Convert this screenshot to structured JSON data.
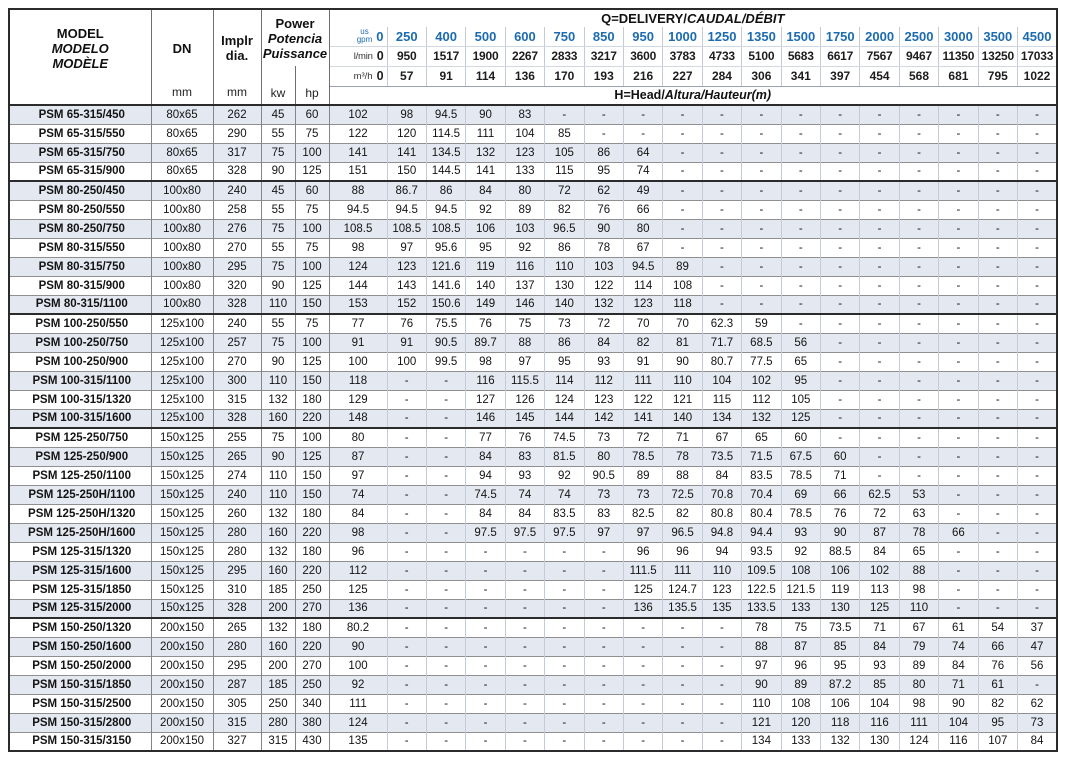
{
  "table": {
    "header": {
      "model_line1": "MODEL",
      "model_line2": "MODELO",
      "model_line3": "MODÈLE",
      "dn_label": "DN",
      "dn_unit": "mm",
      "implr_line1": "Implr",
      "implr_line2": "dia.",
      "implr_unit": "mm",
      "power_line1": "Power",
      "power_line2": "Potencia",
      "power_line3": "Puissance",
      "kw_label": "kw",
      "hp_label": "hp",
      "q_title_plain": "Q=DELIVERY/",
      "q_title_italic": "CAUDAL/DÉBIT",
      "h_title_plain": "H=Head/",
      "h_title_italic": "Altura/Hauteur",
      "h_title_unit": "(m)",
      "unit_gpm_top": "us",
      "unit_gpm_bottom": "gpm",
      "unit_lmin": "l/min",
      "unit_m3h": "m³/h"
    },
    "colors": {
      "accent_blue": "#1c6bb0",
      "stripe": "#e3e8f1",
      "border_dark": "#2b2b2b"
    }
  },
  "chart_data": {
    "type": "table",
    "flow_gpm": [
      0,
      250,
      400,
      500,
      600,
      750,
      850,
      950,
      1000,
      1250,
      1350,
      1500,
      1750,
      2000,
      2500,
      3000,
      3500,
      4500
    ],
    "flow_lmin": [
      0,
      950,
      1517,
      1900,
      2267,
      2833,
      3217,
      3600,
      3783,
      4733,
      5100,
      5683,
      6617,
      7567,
      9467,
      11350,
      13250,
      17033
    ],
    "flow_m3h": [
      0,
      57,
      91,
      114,
      136,
      170,
      193,
      216,
      227,
      284,
      306,
      341,
      397,
      454,
      568,
      681,
      795,
      1022
    ],
    "group_end_rows": [
      3,
      10,
      16,
      26,
      33
    ],
    "rows": [
      {
        "model": "PSM 65-315/450",
        "dn": "80x65",
        "dia": 262,
        "kw": 45,
        "hp": 60,
        "head": [
          102,
          98,
          94.5,
          90,
          83,
          "-",
          "-",
          "-",
          "-",
          "-",
          "-",
          "-",
          "-",
          "-",
          "-",
          "-",
          "-",
          "-"
        ]
      },
      {
        "model": "PSM 65-315/550",
        "dn": "80x65",
        "dia": 290,
        "kw": 55,
        "hp": 75,
        "head": [
          122,
          120,
          114.5,
          111,
          104,
          85,
          "-",
          "-",
          "-",
          "-",
          "-",
          "-",
          "-",
          "-",
          "-",
          "-",
          "-",
          "-"
        ]
      },
      {
        "model": "PSM 65-315/750",
        "dn": "80x65",
        "dia": 317,
        "kw": 75,
        "hp": 100,
        "head": [
          141,
          141,
          134.5,
          132,
          123,
          105,
          86,
          64,
          "-",
          "-",
          "-",
          "-",
          "-",
          "-",
          "-",
          "-",
          "-",
          "-"
        ]
      },
      {
        "model": "PSM 65-315/900",
        "dn": "80x65",
        "dia": 328,
        "kw": 90,
        "hp": 125,
        "head": [
          151,
          150,
          144.5,
          141,
          133,
          115,
          95,
          74,
          "-",
          "-",
          "-",
          "-",
          "-",
          "-",
          "-",
          "-",
          "-",
          "-"
        ]
      },
      {
        "model": "PSM 80-250/450",
        "dn": "100x80",
        "dia": 240,
        "kw": 45,
        "hp": 60,
        "head": [
          88,
          86.7,
          86,
          84,
          80,
          72,
          62,
          49,
          "-",
          "-",
          "-",
          "-",
          "-",
          "-",
          "-",
          "-",
          "-",
          "-"
        ]
      },
      {
        "model": "PSM 80-250/550",
        "dn": "100x80",
        "dia": 258,
        "kw": 55,
        "hp": 75,
        "head": [
          94.5,
          94.5,
          94.5,
          92,
          89,
          82,
          76,
          66,
          "-",
          "-",
          "-",
          "-",
          "-",
          "-",
          "-",
          "-",
          "-",
          "-"
        ]
      },
      {
        "model": "PSM 80-250/750",
        "dn": "100x80",
        "dia": 276,
        "kw": 75,
        "hp": 100,
        "head": [
          108.5,
          108.5,
          108.5,
          106,
          103,
          96.5,
          90,
          80,
          "-",
          "-",
          "-",
          "-",
          "-",
          "-",
          "-",
          "-",
          "-",
          "-"
        ]
      },
      {
        "model": "PSM 80-315/550",
        "dn": "100x80",
        "dia": 270,
        "kw": 55,
        "hp": 75,
        "head": [
          98,
          97,
          95.6,
          95,
          92,
          86,
          78,
          67,
          "-",
          "-",
          "-",
          "-",
          "-",
          "-",
          "-",
          "-",
          "-",
          "-"
        ]
      },
      {
        "model": "PSM 80-315/750",
        "dn": "100x80",
        "dia": 295,
        "kw": 75,
        "hp": 100,
        "head": [
          124,
          123,
          121.6,
          119,
          116,
          110,
          103,
          94.5,
          89,
          "-",
          "-",
          "-",
          "-",
          "-",
          "-",
          "-",
          "-",
          "-"
        ]
      },
      {
        "model": "PSM 80-315/900",
        "dn": "100x80",
        "dia": 320,
        "kw": 90,
        "hp": 125,
        "head": [
          144,
          143,
          141.6,
          140,
          137,
          130,
          122,
          114,
          108,
          "-",
          "-",
          "-",
          "-",
          "-",
          "-",
          "-",
          "-",
          "-"
        ]
      },
      {
        "model": "PSM 80-315/1100",
        "dn": "100x80",
        "dia": 328,
        "kw": 110,
        "hp": 150,
        "head": [
          153,
          152,
          150.6,
          149,
          146,
          140,
          132,
          123,
          118,
          "-",
          "-",
          "-",
          "-",
          "-",
          "-",
          "-",
          "-",
          "-"
        ]
      },
      {
        "model": "PSM 100-250/550",
        "dn": "125x100",
        "dia": 240,
        "kw": 55,
        "hp": 75,
        "head": [
          77,
          76,
          75.5,
          76,
          75,
          73,
          72,
          70,
          70,
          62.3,
          59,
          "-",
          "-",
          "-",
          "-",
          "-",
          "-",
          "-"
        ]
      },
      {
        "model": "PSM 100-250/750",
        "dn": "125x100",
        "dia": 257,
        "kw": 75,
        "hp": 100,
        "head": [
          91,
          91,
          90.5,
          89.7,
          88,
          86,
          84,
          82,
          81,
          71.7,
          68.5,
          56,
          "-",
          "-",
          "-",
          "-",
          "-",
          "-"
        ]
      },
      {
        "model": "PSM 100-250/900",
        "dn": "125x100",
        "dia": 270,
        "kw": 90,
        "hp": 125,
        "head": [
          100,
          100,
          99.5,
          98,
          97,
          95,
          93,
          91,
          90,
          80.7,
          77.5,
          65,
          "-",
          "-",
          "-",
          "-",
          "-",
          "-"
        ]
      },
      {
        "model": "PSM 100-315/1100",
        "dn": "125x100",
        "dia": 300,
        "kw": 110,
        "hp": 150,
        "head": [
          118,
          "-",
          "-",
          116,
          115.5,
          114,
          112,
          111,
          110,
          104,
          102,
          95,
          "-",
          "-",
          "-",
          "-",
          "-",
          "-"
        ]
      },
      {
        "model": "PSM 100-315/1320",
        "dn": "125x100",
        "dia": 315,
        "kw": 132,
        "hp": 180,
        "head": [
          129,
          "-",
          "-",
          127,
          126,
          124,
          123,
          122,
          121,
          115,
          112,
          105,
          "-",
          "-",
          "-",
          "-",
          "-",
          "-"
        ]
      },
      {
        "model": "PSM 100-315/1600",
        "dn": "125x100",
        "dia": 328,
        "kw": 160,
        "hp": 220,
        "head": [
          148,
          "-",
          "-",
          146,
          145,
          144,
          142,
          141,
          140,
          134,
          132,
          125,
          "-",
          "-",
          "-",
          "-",
          "-",
          "-"
        ]
      },
      {
        "model": "PSM 125-250/750",
        "dn": "150x125",
        "dia": 255,
        "kw": 75,
        "hp": 100,
        "head": [
          80,
          "-",
          "-",
          77,
          76,
          74.5,
          73,
          72,
          71,
          67,
          65,
          60,
          "-",
          "-",
          "-",
          "-",
          "-",
          "-"
        ]
      },
      {
        "model": "PSM 125-250/900",
        "dn": "150x125",
        "dia": 265,
        "kw": 90,
        "hp": 125,
        "head": [
          87,
          "-",
          "-",
          84,
          83,
          81.5,
          80,
          78.5,
          78,
          73.5,
          71.5,
          67.5,
          60,
          "-",
          "-",
          "-",
          "-",
          "-"
        ]
      },
      {
        "model": "PSM 125-250/1100",
        "dn": "150x125",
        "dia": 274,
        "kw": 110,
        "hp": 150,
        "head": [
          97,
          "-",
          "-",
          94,
          93,
          92,
          90.5,
          89,
          88,
          84,
          83.5,
          78.5,
          71,
          "-",
          "-",
          "-",
          "-",
          "-"
        ]
      },
      {
        "model": "PSM 125-250H/1100",
        "dn": "150x125",
        "dia": 240,
        "kw": 110,
        "hp": 150,
        "head": [
          74,
          "-",
          "-",
          74.5,
          74,
          74,
          73,
          73,
          72.5,
          70.8,
          70.4,
          69,
          66,
          62.5,
          53,
          "-",
          "-",
          "-"
        ]
      },
      {
        "model": "PSM 125-250H/1320",
        "dn": "150x125",
        "dia": 260,
        "kw": 132,
        "hp": 180,
        "head": [
          84,
          "-",
          "-",
          84,
          84,
          83.5,
          83,
          82.5,
          82,
          80.8,
          80.4,
          78.5,
          76,
          72,
          63,
          "-",
          "-",
          "-"
        ]
      },
      {
        "model": "PSM 125-250H/1600",
        "dn": "150x125",
        "dia": 280,
        "kw": 160,
        "hp": 220,
        "head": [
          98,
          "-",
          "-",
          97.5,
          97.5,
          97.5,
          97,
          97,
          96.5,
          94.8,
          94.4,
          93,
          90,
          87,
          78,
          66,
          "-",
          "-"
        ]
      },
      {
        "model": "PSM 125-315/1320",
        "dn": "150x125",
        "dia": 280,
        "kw": 132,
        "hp": 180,
        "head": [
          96,
          "-",
          "-",
          "-",
          "-",
          "-",
          "-",
          96,
          96,
          94,
          93.5,
          92,
          88.5,
          84,
          65,
          "-",
          "-",
          "-"
        ]
      },
      {
        "model": "PSM 125-315/1600",
        "dn": "150x125",
        "dia": 295,
        "kw": 160,
        "hp": 220,
        "head": [
          112,
          "-",
          "-",
          "-",
          "-",
          "-",
          "-",
          111.5,
          111,
          110,
          109.5,
          108,
          106,
          102,
          88,
          "-",
          "-",
          "-"
        ]
      },
      {
        "model": "PSM 125-315/1850",
        "dn": "150x125",
        "dia": 310,
        "kw": 185,
        "hp": 250,
        "head": [
          125,
          "-",
          "-",
          "-",
          "-",
          "-",
          "-",
          125,
          124.7,
          123,
          122.5,
          121.5,
          119,
          113,
          98,
          "-",
          "-",
          "-"
        ]
      },
      {
        "model": "PSM 125-315/2000",
        "dn": "150x125",
        "dia": 328,
        "kw": 200,
        "hp": 270,
        "head": [
          136,
          "-",
          "-",
          "-",
          "-",
          "-",
          "-",
          136,
          135.5,
          135,
          133.5,
          133,
          130,
          125,
          110,
          "-",
          "-",
          "-"
        ]
      },
      {
        "model": "PSM 150-250/1320",
        "dn": "200x150",
        "dia": 265,
        "kw": 132,
        "hp": 180,
        "head": [
          80.2,
          "-",
          "-",
          "-",
          "-",
          "-",
          "-",
          "-",
          "-",
          "-",
          78,
          75,
          73.5,
          71,
          67,
          61,
          54,
          37
        ]
      },
      {
        "model": "PSM 150-250/1600",
        "dn": "200x150",
        "dia": 280,
        "kw": 160,
        "hp": 220,
        "head": [
          90,
          "-",
          "-",
          "-",
          "-",
          "-",
          "-",
          "-",
          "-",
          "-",
          88,
          87,
          85,
          84,
          79,
          74,
          66,
          47
        ]
      },
      {
        "model": "PSM 150-250/2000",
        "dn": "200x150",
        "dia": 295,
        "kw": 200,
        "hp": 270,
        "head": [
          100,
          "-",
          "-",
          "-",
          "-",
          "-",
          "-",
          "-",
          "-",
          "-",
          97,
          96,
          95,
          93,
          89,
          84,
          76,
          56
        ]
      },
      {
        "model": "PSM 150-315/1850",
        "dn": "200x150",
        "dia": 287,
        "kw": 185,
        "hp": 250,
        "head": [
          92,
          "-",
          "-",
          "-",
          "-",
          "-",
          "-",
          "-",
          "-",
          "-",
          90,
          89,
          87.2,
          85,
          80,
          71,
          61,
          "-"
        ]
      },
      {
        "model": "PSM 150-315/2500",
        "dn": "200x150",
        "dia": 305,
        "kw": 250,
        "hp": 340,
        "head": [
          111,
          "-",
          "-",
          "-",
          "-",
          "-",
          "-",
          "-",
          "-",
          "-",
          110,
          108,
          106,
          104,
          98,
          90,
          82,
          62
        ]
      },
      {
        "model": "PSM 150-315/2800",
        "dn": "200x150",
        "dia": 315,
        "kw": 280,
        "hp": 380,
        "head": [
          124,
          "-",
          "-",
          "-",
          "-",
          "-",
          "-",
          "-",
          "-",
          "-",
          121,
          120,
          118,
          116,
          111,
          104,
          95,
          73
        ]
      },
      {
        "model": "PSM 150-315/3150",
        "dn": "200x150",
        "dia": 327,
        "kw": 315,
        "hp": 430,
        "head": [
          135,
          "-",
          "-",
          "-",
          "-",
          "-",
          "-",
          "-",
          "-",
          "-",
          134,
          133,
          132,
          130,
          124,
          116,
          107,
          84
        ]
      }
    ]
  }
}
